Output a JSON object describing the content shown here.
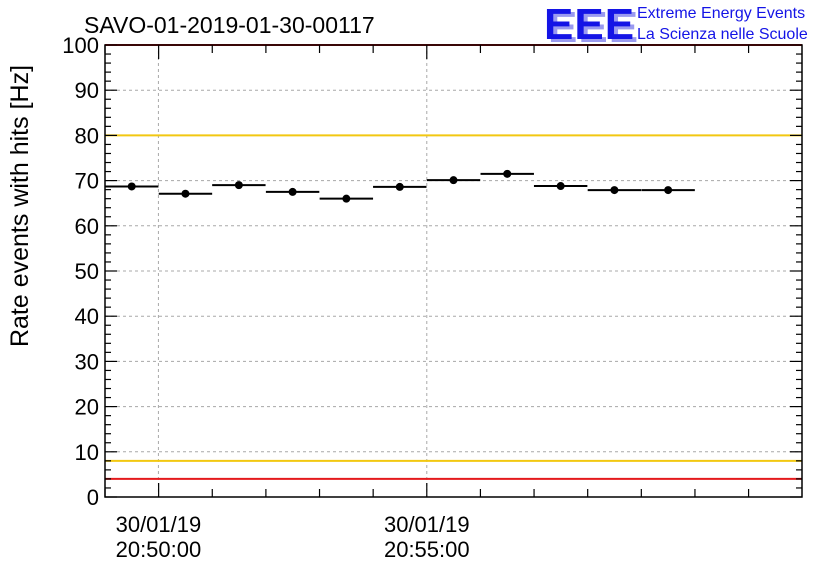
{
  "header": {
    "title": "SAVO-01-2019-01-30-00117",
    "logo_mark": "EEE",
    "logo_line1": "Extreme Energy Events",
    "logo_line2": "La Scienza nelle Scuole"
  },
  "chart_data": {
    "type": "scatter",
    "ylabel": "Rate events with hits [Hz]",
    "xlabel": "",
    "ylim": [
      0,
      100
    ],
    "yticks": [
      0,
      10,
      20,
      30,
      40,
      50,
      60,
      70,
      80,
      90,
      100
    ],
    "x_unit": "minutes",
    "xlim": [
      20.8167,
      21.0333
    ],
    "xticks": [
      {
        "x": 20.8333,
        "date": "30/01/19",
        "time": "20:50:00"
      },
      {
        "x": 20.9167,
        "date": "30/01/19",
        "time": "20:55:00"
      }
    ],
    "grid": true,
    "points": [
      {
        "x": 20.825,
        "half_width": 0.0083,
        "y": 68.7,
        "err": 0.6
      },
      {
        "x": 20.8417,
        "half_width": 0.0083,
        "y": 67.1,
        "err": 0.6
      },
      {
        "x": 20.8583,
        "half_width": 0.0083,
        "y": 69.0,
        "err": 0.6
      },
      {
        "x": 20.875,
        "half_width": 0.0083,
        "y": 67.5,
        "err": 0.6
      },
      {
        "x": 20.8917,
        "half_width": 0.0083,
        "y": 66.0,
        "err": 0.6
      },
      {
        "x": 20.9083,
        "half_width": 0.0083,
        "y": 68.6,
        "err": 0.6
      },
      {
        "x": 20.925,
        "half_width": 0.0083,
        "y": 70.1,
        "err": 0.6
      },
      {
        "x": 20.9417,
        "half_width": 0.0083,
        "y": 71.5,
        "err": 0.6
      },
      {
        "x": 20.9583,
        "half_width": 0.0083,
        "y": 68.8,
        "err": 0.6
      },
      {
        "x": 20.975,
        "half_width": 0.0083,
        "y": 67.9,
        "err": 0.6
      },
      {
        "x": 20.9917,
        "half_width": 0.0083,
        "y": 67.9,
        "err": 0.6
      }
    ],
    "reference_lines": [
      {
        "y": 100,
        "color": "#e41a1c"
      },
      {
        "y": 80,
        "color": "#f2c811"
      },
      {
        "y": 8,
        "color": "#f2c811"
      },
      {
        "y": 4,
        "color": "#e41a1c"
      }
    ]
  }
}
